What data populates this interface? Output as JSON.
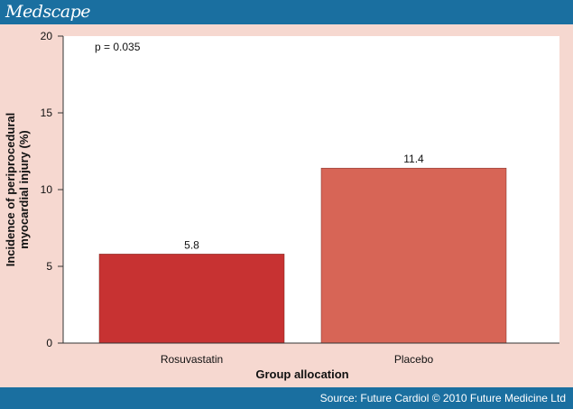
{
  "header": {
    "brand": "Medscape"
  },
  "footer": {
    "source": "Source: Future Cardiol © 2010 Future Medicine Ltd"
  },
  "colors": {
    "header_bg": "#1a6fa0",
    "panel_bg": "#f6d8d0",
    "plot_bg": "#ffffff",
    "bar_rosuvastatin": "#c73232",
    "bar_placebo": "#d76556"
  },
  "chart_data": {
    "type": "bar",
    "categories": [
      "Rosuvastatin",
      "Placebo"
    ],
    "values": [
      5.8,
      11.4
    ],
    "data_labels": [
      "5.8",
      "11.4"
    ],
    "xlabel": "Group allocation",
    "ylabel_lines": [
      "Incidence of  periprocedural",
      "myocardial injury (%)"
    ],
    "ylim": [
      0,
      20
    ],
    "yticks": [
      0,
      5,
      10,
      15,
      20
    ],
    "annotation": "p = 0.035",
    "grid": false
  }
}
